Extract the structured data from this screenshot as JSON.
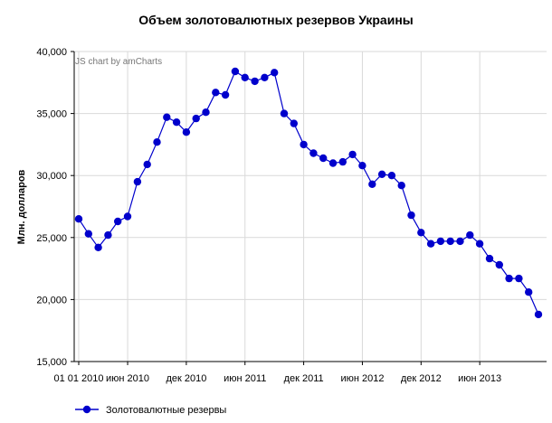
{
  "chart_data": {
    "type": "line",
    "title": "Объем золотовалютных резервов Украины",
    "xlabel": "",
    "ylabel": "Млн. долларов",
    "credit": "JS chart by amCharts",
    "ylim": [
      15000,
      40000
    ],
    "y_ticks": [
      15000,
      20000,
      25000,
      30000,
      35000,
      40000
    ],
    "y_tick_labels": [
      "15,000",
      "20,000",
      "25,000",
      "30,000",
      "35,000",
      "40,000"
    ],
    "x_ticks": [
      {
        "month": "2010-01",
        "label": "01 01 2010"
      },
      {
        "month": "2010-06",
        "label": "июн 2010"
      },
      {
        "month": "2010-12",
        "label": "дек 2010"
      },
      {
        "month": "2011-06",
        "label": "июн 2011"
      },
      {
        "month": "2011-12",
        "label": "дек 2011"
      },
      {
        "month": "2012-06",
        "label": "июн 2012"
      },
      {
        "month": "2012-12",
        "label": "дек 2012"
      },
      {
        "month": "2013-06",
        "label": "июн 2013"
      }
    ],
    "grid": true,
    "legend_position": "bottom-left",
    "series": [
      {
        "name": "Золотовалютные резервы",
        "color": "#0000cc",
        "x": [
          "2010-01",
          "2010-02",
          "2010-03",
          "2010-04",
          "2010-05",
          "2010-06",
          "2010-07",
          "2010-08",
          "2010-09",
          "2010-10",
          "2010-11",
          "2010-12",
          "2011-01",
          "2011-02",
          "2011-03",
          "2011-04",
          "2011-05",
          "2011-06",
          "2011-07",
          "2011-08",
          "2011-09",
          "2011-10",
          "2011-11",
          "2011-12",
          "2012-01",
          "2012-02",
          "2012-03",
          "2012-04",
          "2012-05",
          "2012-06",
          "2012-07",
          "2012-08",
          "2012-09",
          "2012-10",
          "2012-11",
          "2012-12",
          "2013-01",
          "2013-02",
          "2013-03",
          "2013-04",
          "2013-05",
          "2013-06",
          "2013-07",
          "2013-08",
          "2013-09",
          "2013-10",
          "2013-11",
          "2013-12"
        ],
        "values": [
          26500,
          25300,
          24200,
          25200,
          26300,
          26700,
          29500,
          30900,
          32700,
          34700,
          34300,
          33500,
          34600,
          35100,
          36700,
          36500,
          38400,
          37900,
          37600,
          37900,
          38300,
          35000,
          34200,
          32500,
          31800,
          31400,
          31000,
          31100,
          31700,
          30800,
          29300,
          30100,
          30000,
          29200,
          26800,
          25400,
          24500,
          24700,
          24700,
          24700,
          25200,
          24500,
          23300,
          22800,
          21700,
          21700,
          20600,
          18800
        ]
      }
    ]
  }
}
